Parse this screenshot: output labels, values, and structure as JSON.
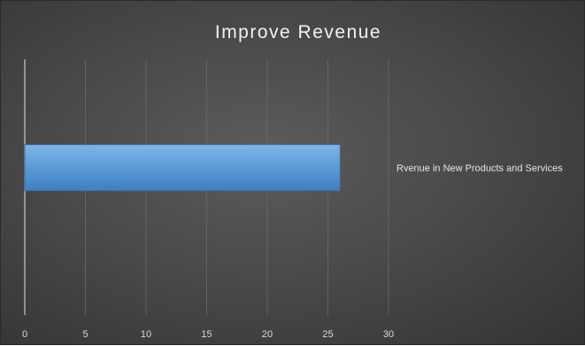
{
  "chart_data": {
    "type": "bar",
    "orientation": "horizontal",
    "title": "Improve Revenue",
    "categories": [
      "Rvenue in New Products and Services"
    ],
    "values": [
      26
    ],
    "xlim": [
      0,
      30
    ],
    "x_ticks": [
      "0",
      "5",
      "10",
      "15",
      "20",
      "25",
      "30"
    ],
    "grid": true,
    "legend": "none",
    "bar_color": "#5b9bd5",
    "background": "#4a4a4a"
  }
}
